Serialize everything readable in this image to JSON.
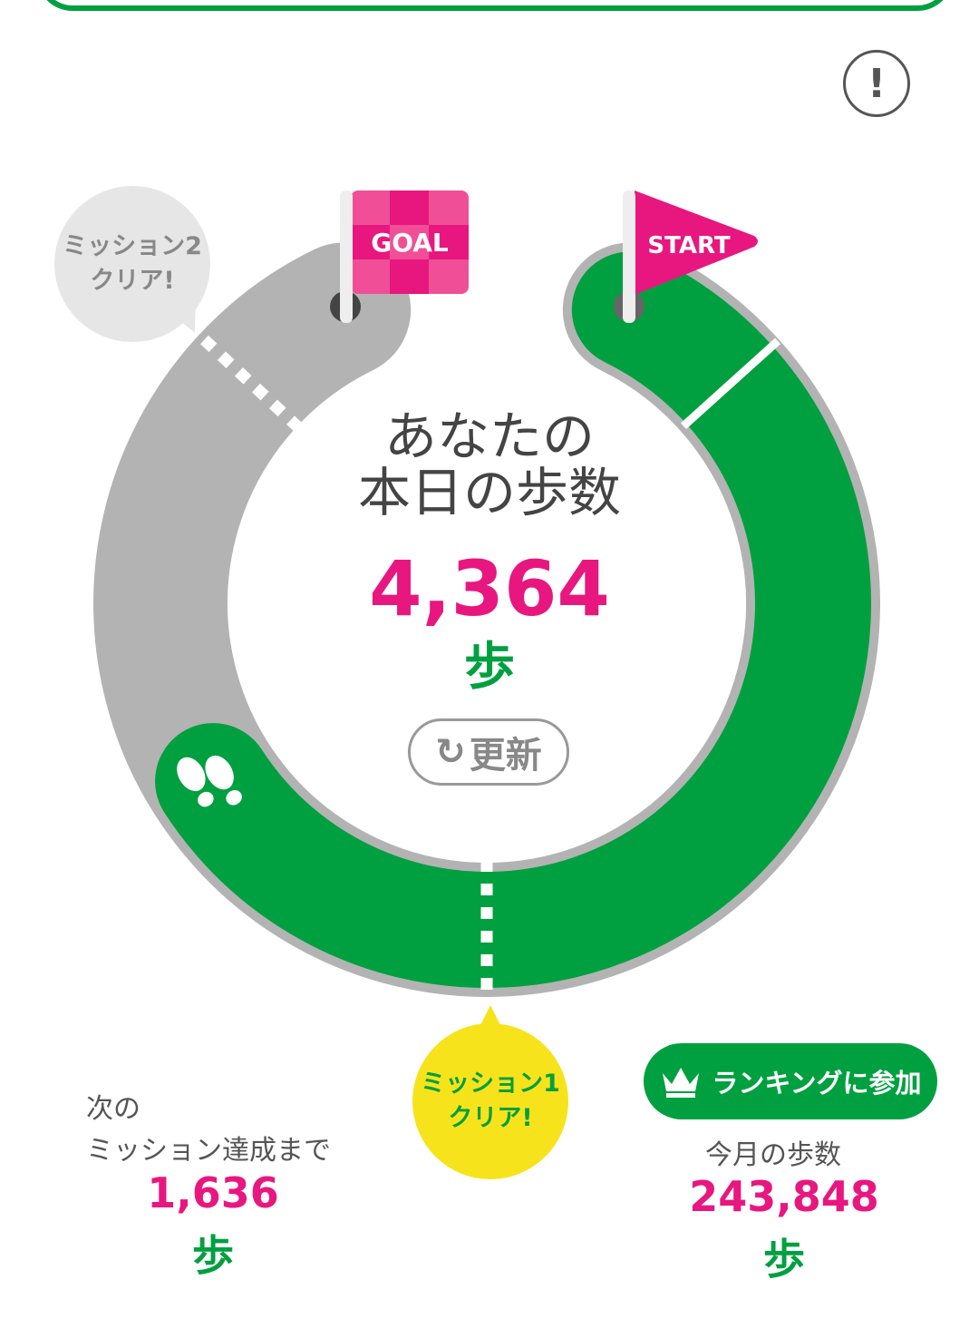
{
  "colors": {
    "accent_green": "#00a040",
    "accent_pink": "#e8177f",
    "track_grey": "#b3b3b3",
    "mission_yellow": "#f7e31c"
  },
  "info_button": {
    "icon": "exclamation-icon",
    "label": "!"
  },
  "flags": {
    "goal": "GOAL",
    "start": "START"
  },
  "center": {
    "title_line1": "あなたの",
    "title_line2": "本日の歩数",
    "steps": "4,364",
    "unit": "歩"
  },
  "refresh_button": {
    "icon": "refresh-icon",
    "label": "更新"
  },
  "missions": [
    {
      "line1": "ミッション1",
      "line2": "クリア!"
    },
    {
      "line1": "ミッション2",
      "line2": "クリア!"
    }
  ],
  "next_mission": {
    "line1": "次の",
    "line2": "ミッション達成まで",
    "steps": "1,636",
    "unit": "歩"
  },
  "ranking_button": {
    "icon": "crown-icon",
    "label": "ランキングに参加"
  },
  "monthly": {
    "label": "今月の歩数",
    "steps": "243,848",
    "unit": "歩"
  }
}
